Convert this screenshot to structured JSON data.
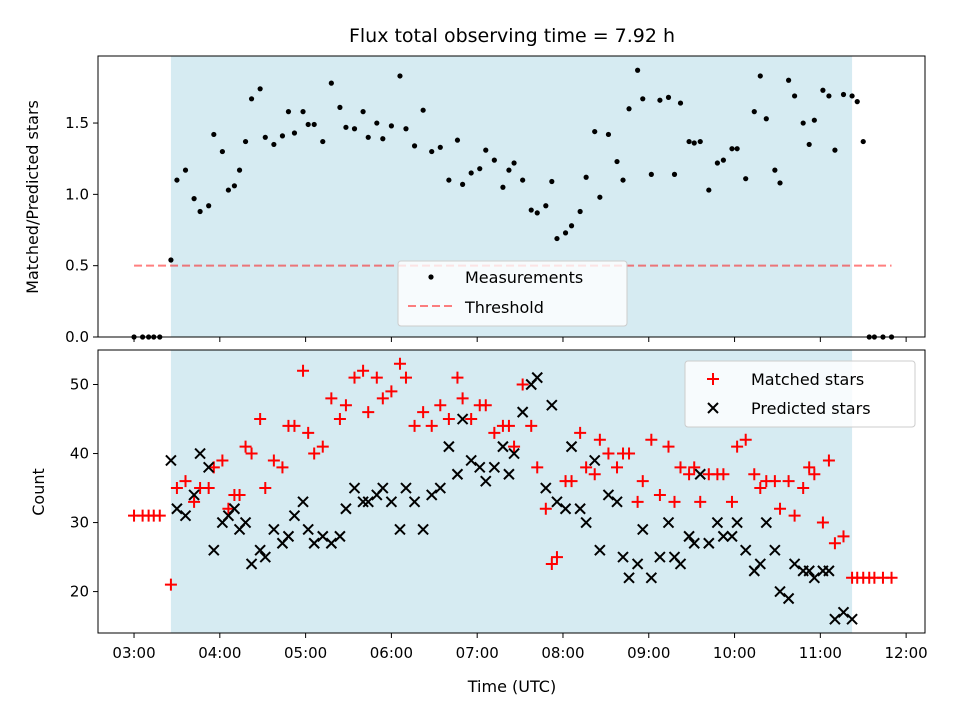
{
  "title": "Flux total observing time = 7.92 h",
  "colors": {
    "shade": "#ADD8E6",
    "threshold": "#FF0000",
    "matched": "#FF0000",
    "predicted": "#000000",
    "measure": "#000000"
  },
  "chart_data": [
    {
      "type": "scatter",
      "ylabel": "Matched/Predicted stars",
      "ylim": [
        0,
        1.97
      ],
      "yticks": [
        0.0,
        0.5,
        1.0,
        1.5
      ],
      "ytick_labels": [
        "0.0",
        "0.5",
        "1.0",
        "1.5"
      ],
      "xlim_hours": [
        2.58,
        12.22
      ],
      "shaded_span_hours": [
        3.43,
        11.37
      ],
      "legend": {
        "placement": "lower-center",
        "entries": [
          "Measurements",
          "Threshold"
        ]
      },
      "threshold": {
        "name": "Threshold",
        "y": 0.5,
        "x_hours": [
          3.0,
          11.83
        ]
      },
      "series": [
        {
          "name": "Measurements",
          "x_hours": [
            3.0,
            3.1,
            3.17,
            3.23,
            3.3,
            3.43,
            3.5,
            3.6,
            3.7,
            3.77,
            3.87,
            3.93,
            4.03,
            4.1,
            4.17,
            4.23,
            4.3,
            4.37,
            4.47,
            4.53,
            4.63,
            4.73,
            4.8,
            4.87,
            4.97,
            5.03,
            5.1,
            5.2,
            5.3,
            5.4,
            5.47,
            5.57,
            5.67,
            5.73,
            5.83,
            5.9,
            6.0,
            6.1,
            6.17,
            6.27,
            6.37,
            6.47,
            6.57,
            6.67,
            6.77,
            6.83,
            6.93,
            7.03,
            7.1,
            7.2,
            7.3,
            7.37,
            7.43,
            7.53,
            7.63,
            7.7,
            7.8,
            7.87,
            7.93,
            8.03,
            8.1,
            8.2,
            8.27,
            8.37,
            8.43,
            8.53,
            8.63,
            8.7,
            8.77,
            8.87,
            8.93,
            9.03,
            9.13,
            9.23,
            9.3,
            9.37,
            9.47,
            9.53,
            9.6,
            9.7,
            9.8,
            9.87,
            9.97,
            10.03,
            10.13,
            10.23,
            10.3,
            10.37,
            10.47,
            10.53,
            10.63,
            10.7,
            10.8,
            10.87,
            10.93,
            11.03,
            11.1,
            11.17,
            11.27,
            11.37,
            11.43,
            11.5,
            11.57,
            11.63,
            11.73,
            11.83
          ],
          "y": [
            0.0,
            0.0,
            0.0,
            0.0,
            0.0,
            0.54,
            1.1,
            1.17,
            0.97,
            0.88,
            0.92,
            1.42,
            1.3,
            1.03,
            1.06,
            1.17,
            1.37,
            1.67,
            1.74,
            1.4,
            1.35,
            1.41,
            1.58,
            1.43,
            1.58,
            1.49,
            1.49,
            1.37,
            1.78,
            1.61,
            1.47,
            1.46,
            1.58,
            1.4,
            1.5,
            1.39,
            1.48,
            1.83,
            1.46,
            1.34,
            1.59,
            1.3,
            1.33,
            1.1,
            1.38,
            1.07,
            1.15,
            1.18,
            1.31,
            1.24,
            1.05,
            1.17,
            1.22,
            1.1,
            0.89,
            0.87,
            0.92,
            1.09,
            0.69,
            0.73,
            0.78,
            0.88,
            1.12,
            1.44,
            0.98,
            1.42,
            1.23,
            1.1,
            1.6,
            1.87,
            1.67,
            1.14,
            1.66,
            1.68,
            1.14,
            1.64,
            1.37,
            1.36,
            1.37,
            1.03,
            1.22,
            1.24,
            1.32,
            1.32,
            1.11,
            1.58,
            1.83,
            1.53,
            1.17,
            1.08,
            1.8,
            1.69,
            1.5,
            1.35,
            1.52,
            1.73,
            1.69,
            1.31,
            1.7,
            1.69,
            1.65,
            1.37,
            0.0,
            0.0,
            0.0,
            0.0
          ]
        }
      ]
    },
    {
      "type": "scatter",
      "xlabel": "Time (UTC)",
      "ylabel": "Count",
      "ylim": [
        14,
        55
      ],
      "yticks": [
        20,
        30,
        40,
        50
      ],
      "ytick_labels": [
        "20",
        "30",
        "40",
        "50"
      ],
      "xlim_hours": [
        2.58,
        12.22
      ],
      "shaded_span_hours": [
        3.43,
        11.37
      ],
      "xticks_hours": [
        3,
        4,
        5,
        6,
        7,
        8,
        9,
        10,
        11,
        12
      ],
      "xtick_labels": [
        "03:00",
        "04:00",
        "05:00",
        "06:00",
        "07:00",
        "08:00",
        "09:00",
        "10:00",
        "11:00",
        "12:00"
      ],
      "legend": {
        "placement": "upper-right",
        "entries": [
          "Matched stars",
          "Predicted stars"
        ]
      },
      "series": [
        {
          "name": "Matched stars",
          "marker": "plus",
          "x_hours": [
            3.0,
            3.1,
            3.17,
            3.23,
            3.3,
            3.43,
            3.5,
            3.6,
            3.7,
            3.77,
            3.87,
            3.93,
            4.03,
            4.1,
            4.17,
            4.23,
            4.3,
            4.37,
            4.47,
            4.53,
            4.63,
            4.73,
            4.8,
            4.87,
            4.97,
            5.03,
            5.1,
            5.2,
            5.3,
            5.4,
            5.47,
            5.57,
            5.67,
            5.73,
            5.83,
            5.9,
            6.0,
            6.1,
            6.17,
            6.27,
            6.37,
            6.47,
            6.57,
            6.67,
            6.77,
            6.83,
            6.93,
            7.03,
            7.1,
            7.2,
            7.3,
            7.37,
            7.43,
            7.53,
            7.63,
            7.7,
            7.8,
            7.87,
            7.93,
            8.03,
            8.1,
            8.2,
            8.27,
            8.37,
            8.43,
            8.53,
            8.63,
            8.7,
            8.77,
            8.87,
            8.93,
            9.03,
            9.13,
            9.23,
            9.3,
            9.37,
            9.47,
            9.53,
            9.6,
            9.7,
            9.8,
            9.87,
            9.97,
            10.03,
            10.13,
            10.23,
            10.3,
            10.37,
            10.47,
            10.53,
            10.63,
            10.7,
            10.8,
            10.87,
            10.93,
            11.03,
            11.1,
            11.17,
            11.27,
            11.37,
            11.43,
            11.5,
            11.57,
            11.63,
            11.73,
            11.83
          ],
          "y": [
            31,
            31,
            31,
            31,
            31,
            21,
            35,
            36,
            33,
            35,
            35,
            38,
            39,
            32,
            34,
            34,
            41,
            40,
            45,
            35,
            39,
            38,
            44,
            44,
            52,
            43,
            40,
            41,
            48,
            45,
            47,
            51,
            52,
            46,
            51,
            48,
            49,
            53,
            51,
            44,
            46,
            44,
            47,
            45,
            51,
            48,
            45,
            47,
            47,
            43,
            44,
            44,
            41,
            50,
            44,
            38,
            32,
            24,
            25,
            36,
            36,
            43,
            38,
            37,
            42,
            40,
            38,
            40,
            40,
            33,
            36,
            42,
            34,
            41,
            33,
            38,
            37,
            38,
            33,
            37,
            37,
            37,
            33,
            41,
            42,
            37,
            35,
            36,
            36,
            32,
            36,
            31,
            35,
            38,
            37,
            30,
            39,
            27,
            28,
            22,
            22,
            22,
            22,
            22,
            22,
            22
          ]
        },
        {
          "name": "Predicted stars",
          "marker": "x",
          "x_hours": [
            3.43,
            3.5,
            3.6,
            3.7,
            3.77,
            3.87,
            3.93,
            4.03,
            4.1,
            4.17,
            4.23,
            4.3,
            4.37,
            4.47,
            4.53,
            4.63,
            4.73,
            4.8,
            4.87,
            4.97,
            5.03,
            5.1,
            5.2,
            5.3,
            5.4,
            5.47,
            5.57,
            5.67,
            5.73,
            5.83,
            5.9,
            6.0,
            6.1,
            6.17,
            6.27,
            6.37,
            6.47,
            6.57,
            6.67,
            6.77,
            6.83,
            6.93,
            7.03,
            7.1,
            7.2,
            7.3,
            7.37,
            7.43,
            7.53,
            7.63,
            7.7,
            7.8,
            7.87,
            7.93,
            8.03,
            8.1,
            8.2,
            8.27,
            8.37,
            8.43,
            8.53,
            8.63,
            8.7,
            8.77,
            8.87,
            8.93,
            9.03,
            9.13,
            9.23,
            9.3,
            9.37,
            9.47,
            9.53,
            9.6,
            9.7,
            9.8,
            9.87,
            9.97,
            10.03,
            10.13,
            10.23,
            10.3,
            10.37,
            10.47,
            10.53,
            10.63,
            10.7,
            10.8,
            10.87,
            10.93,
            11.03,
            11.1,
            11.17,
            11.27,
            11.37
          ],
          "y": [
            39,
            32,
            31,
            34,
            40,
            38,
            26,
            30,
            31,
            32,
            29,
            30,
            24,
            26,
            25,
            29,
            27,
            28,
            31,
            33,
            29,
            27,
            28,
            27,
            28,
            32,
            35,
            33,
            33,
            34,
            35,
            33,
            29,
            35,
            33,
            29,
            34,
            35,
            41,
            37,
            45,
            39,
            38,
            36,
            38,
            41,
            37,
            40,
            46,
            50,
            51,
            35,
            47,
            33,
            32,
            41,
            32,
            30,
            39,
            26,
            34,
            33,
            25,
            22,
            24,
            29,
            22,
            25,
            30,
            25,
            24,
            28,
            27,
            37,
            27,
            30,
            28,
            28,
            30,
            26,
            23,
            24,
            30,
            26,
            20,
            19,
            24,
            23,
            23,
            22,
            23,
            23,
            16,
            17,
            16
          ]
        }
      ]
    }
  ]
}
